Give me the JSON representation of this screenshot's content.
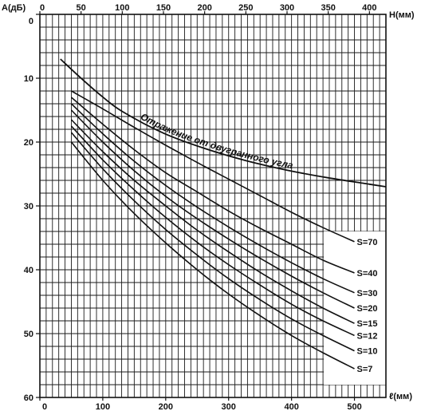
{
  "chart_data": {
    "type": "line",
    "title": "",
    "y_axis": {
      "label": "A(дБ)",
      "range": [
        0,
        60
      ],
      "inverted": true,
      "ticks": [
        "0",
        "10",
        "20",
        "30",
        "40",
        "50",
        "60"
      ]
    },
    "x_bottom_axis": {
      "label": "ℓ(мм)",
      "range": [
        0,
        550
      ],
      "ticks": [
        "0",
        "100",
        "200",
        "300",
        "400",
        "500"
      ]
    },
    "x_top_axis": {
      "label": "H(мм)",
      "range": [
        0,
        420
      ],
      "ticks": [
        "0",
        "50",
        "100",
        "150",
        "200",
        "250",
        "300",
        "350",
        "400"
      ]
    },
    "grid": true,
    "series": [
      {
        "name": "S=70",
        "x": [
          50,
          100,
          150,
          200,
          250,
          300,
          350,
          400,
          450,
          500
        ],
        "y": [
          12,
          14.8,
          17.7,
          20.5,
          23.2,
          25.8,
          28.4,
          31.0,
          33.4,
          35.6
        ]
      },
      {
        "name": "S=40",
        "x": [
          50,
          100,
          150,
          200,
          250,
          300,
          350,
          400,
          450,
          500
        ],
        "y": [
          13,
          17.2,
          21.2,
          24.8,
          27.8,
          30.8,
          33.5,
          36.0,
          38.5,
          40.5
        ]
      },
      {
        "name": "S=30",
        "x": [
          50,
          100,
          150,
          200,
          250,
          300,
          350,
          400,
          450,
          500
        ],
        "y": [
          14,
          18.7,
          23.0,
          26.8,
          30.2,
          33.3,
          36.2,
          38.9,
          41.4,
          43.6
        ]
      },
      {
        "name": "S=20",
        "x": [
          50,
          100,
          150,
          200,
          250,
          300,
          350,
          400,
          450,
          500
        ],
        "y": [
          15,
          20.0,
          24.5,
          28.5,
          32.0,
          35.2,
          38.2,
          41.0,
          43.6,
          46.0
        ]
      },
      {
        "name": "S=15",
        "x": [
          50,
          100,
          150,
          200,
          250,
          300,
          350,
          400,
          450,
          500
        ],
        "y": [
          16.5,
          21.5,
          26.0,
          30.0,
          33.8,
          37.2,
          40.4,
          43.3,
          46.0,
          48.4
        ]
      },
      {
        "name": "S=12",
        "x": [
          50,
          100,
          150,
          200,
          250,
          300,
          350,
          400,
          450,
          500
        ],
        "y": [
          17.5,
          22.8,
          27.5,
          31.8,
          35.7,
          39.2,
          42.4,
          45.4,
          48.0,
          50.3
        ]
      },
      {
        "name": "S=10",
        "x": [
          50,
          100,
          150,
          200,
          250,
          300,
          350,
          400,
          450,
          500
        ],
        "y": [
          18.5,
          24.2,
          29.2,
          33.7,
          37.7,
          41.4,
          44.7,
          47.7,
          50.3,
          52.7
        ]
      },
      {
        "name": "S=7",
        "x": [
          50,
          100,
          150,
          200,
          250,
          300,
          350,
          400,
          450,
          500
        ],
        "y": [
          20,
          26.0,
          31.2,
          35.8,
          40.0,
          43.8,
          47.2,
          50.3,
          53.0,
          55.5
        ]
      },
      {
        "name": "Отражение от двугранного угла",
        "x_axis": "top",
        "x": [
          25,
          50,
          75,
          100,
          150,
          200,
          250,
          300,
          350,
          400,
          420
        ],
        "y": [
          7,
          10,
          12.8,
          15.2,
          18.6,
          21.0,
          22.9,
          24.4,
          25.6,
          26.6,
          27
        ]
      }
    ],
    "annotations": [
      "Отражение от двугранного угла"
    ]
  }
}
